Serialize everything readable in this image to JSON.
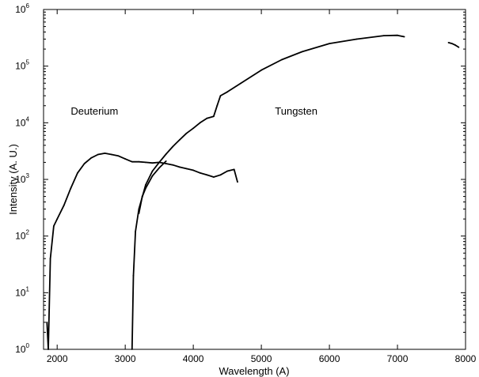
{
  "chart_data": {
    "type": "line",
    "title": "",
    "xlabel": "Wavelength (A)",
    "ylabel": "Intensity (A. U.)",
    "xlim": [
      1800,
      8000
    ],
    "ylim": [
      1,
      1000000
    ],
    "yscale": "log",
    "x_ticks": [
      2000,
      3000,
      4000,
      5000,
      6000,
      7000,
      8000
    ],
    "y_ticks": [
      {
        "value": 1,
        "base": "10",
        "exp": "0"
      },
      {
        "value": 10,
        "base": "10",
        "exp": "1"
      },
      {
        "value": 100,
        "base": "10",
        "exp": "2"
      },
      {
        "value": 1000,
        "base": "10",
        "exp": "3"
      },
      {
        "value": 10000,
        "base": "10",
        "exp": "4"
      },
      {
        "value": 100000,
        "base": "10",
        "exp": "5"
      },
      {
        "value": 1000000,
        "base": "10",
        "exp": "6"
      }
    ],
    "grid": false,
    "legend": "none",
    "line_color": "#000000",
    "annotations": [
      {
        "text": "Deuterium",
        "x": 2200,
        "y": 14000
      },
      {
        "text": "Tungsten",
        "x": 5200,
        "y": 14000
      }
    ],
    "series": [
      {
        "x": [
          1850,
          1870,
          1900,
          1950,
          2000,
          2100,
          2200,
          2300,
          2400,
          2500,
          2600,
          2700,
          2800,
          2900,
          3000,
          3100,
          3200,
          3300,
          3400,
          3500,
          3600,
          3700,
          3800,
          3900,
          4000,
          4100,
          4200,
          4300,
          4400,
          4500,
          4600,
          4650
        ],
        "y": [
          3,
          1,
          40,
          150,
          200,
          350,
          700,
          1300,
          1900,
          2400,
          2750,
          2900,
          2750,
          2600,
          2300,
          2050,
          2050,
          2000,
          1950,
          2000,
          1900,
          1800,
          1650,
          1550,
          1450,
          1300,
          1200,
          1100,
          1200,
          1400,
          1500,
          900
        ]
      },
      {
        "x": [
          3100,
          3120,
          3150,
          3200,
          3300,
          3400,
          3500,
          3600,
          3700,
          3800,
          3900,
          4000,
          4100,
          4200,
          4300,
          4350,
          4400,
          4500,
          4700,
          5000,
          5300,
          5600,
          6000,
          6400,
          6800,
          7000,
          7100
        ],
        "y": [
          1,
          20,
          120,
          300,
          800,
          1400,
          2000,
          2800,
          3800,
          5000,
          6500,
          8000,
          10000,
          12000,
          13000,
          20000,
          30000,
          35000,
          50000,
          85000,
          130000,
          180000,
          250000,
          300000,
          345000,
          350000,
          330000
        ]
      },
      {
        "x": [
          3200,
          3250,
          3300,
          3350,
          3400,
          3500,
          3600
        ],
        "y": [
          250,
          500,
          700,
          900,
          1150,
          1600,
          2100
        ]
      },
      {
        "x": [
          7750,
          7800,
          7850,
          7900
        ],
        "y": [
          260000,
          250000,
          235000,
          215000
        ]
      }
    ]
  }
}
